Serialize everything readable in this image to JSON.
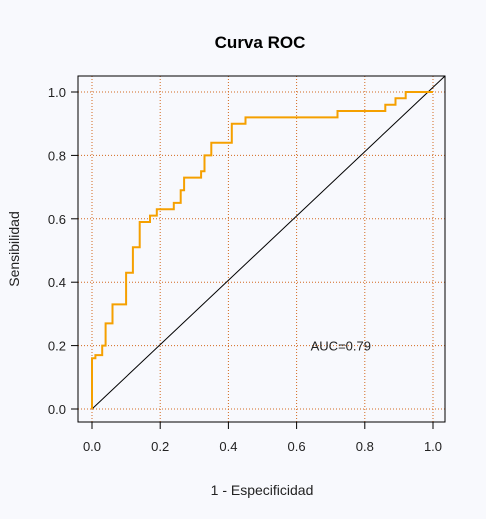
{
  "chart_data": {
    "type": "line",
    "title": "Curva ROC",
    "xlabel": "1 - Especificidad",
    "ylabel": "Sensibilidad",
    "xlim": [
      0,
      1
    ],
    "ylim": [
      0,
      1
    ],
    "xticks": [
      0.0,
      0.2,
      0.4,
      0.6,
      0.8,
      1.0
    ],
    "yticks": [
      0.0,
      0.2,
      0.4,
      0.6,
      0.8,
      1.0
    ],
    "xtick_labels": [
      "0.0",
      "0.2",
      "0.4",
      "0.6",
      "0.8",
      "1.0"
    ],
    "ytick_labels": [
      "0.0",
      "0.2",
      "0.4",
      "0.6",
      "0.8",
      "1.0"
    ],
    "grid": true,
    "grid_color": "#d2691e",
    "roc_color": "#f5a000",
    "reference_line_color": "#000000",
    "annotation": "AUC=0.79",
    "annotation_position": {
      "x": 0.8,
      "y": 0.2
    },
    "series": [
      {
        "x": [
          0.0,
          0.0,
          0.01,
          0.01,
          0.03,
          0.03,
          0.04,
          0.04,
          0.06,
          0.06,
          0.1,
          0.1,
          0.12,
          0.12,
          0.14,
          0.14,
          0.17,
          0.17,
          0.19,
          0.19,
          0.24,
          0.24,
          0.26,
          0.26,
          0.27,
          0.27,
          0.32,
          0.32,
          0.33,
          0.33,
          0.35,
          0.35,
          0.41,
          0.41,
          0.45,
          0.45,
          0.72,
          0.72,
          0.86,
          0.86,
          0.89,
          0.89,
          0.92,
          0.92,
          1.0
        ],
        "y": [
          0.0,
          0.16,
          0.16,
          0.17,
          0.17,
          0.2,
          0.2,
          0.27,
          0.27,
          0.33,
          0.33,
          0.43,
          0.43,
          0.51,
          0.51,
          0.59,
          0.59,
          0.61,
          0.61,
          0.63,
          0.63,
          0.65,
          0.65,
          0.69,
          0.69,
          0.73,
          0.73,
          0.75,
          0.75,
          0.8,
          0.8,
          0.84,
          0.84,
          0.9,
          0.9,
          0.92,
          0.92,
          0.94,
          0.94,
          0.96,
          0.96,
          0.98,
          0.98,
          1.0,
          1.0
        ]
      }
    ]
  }
}
